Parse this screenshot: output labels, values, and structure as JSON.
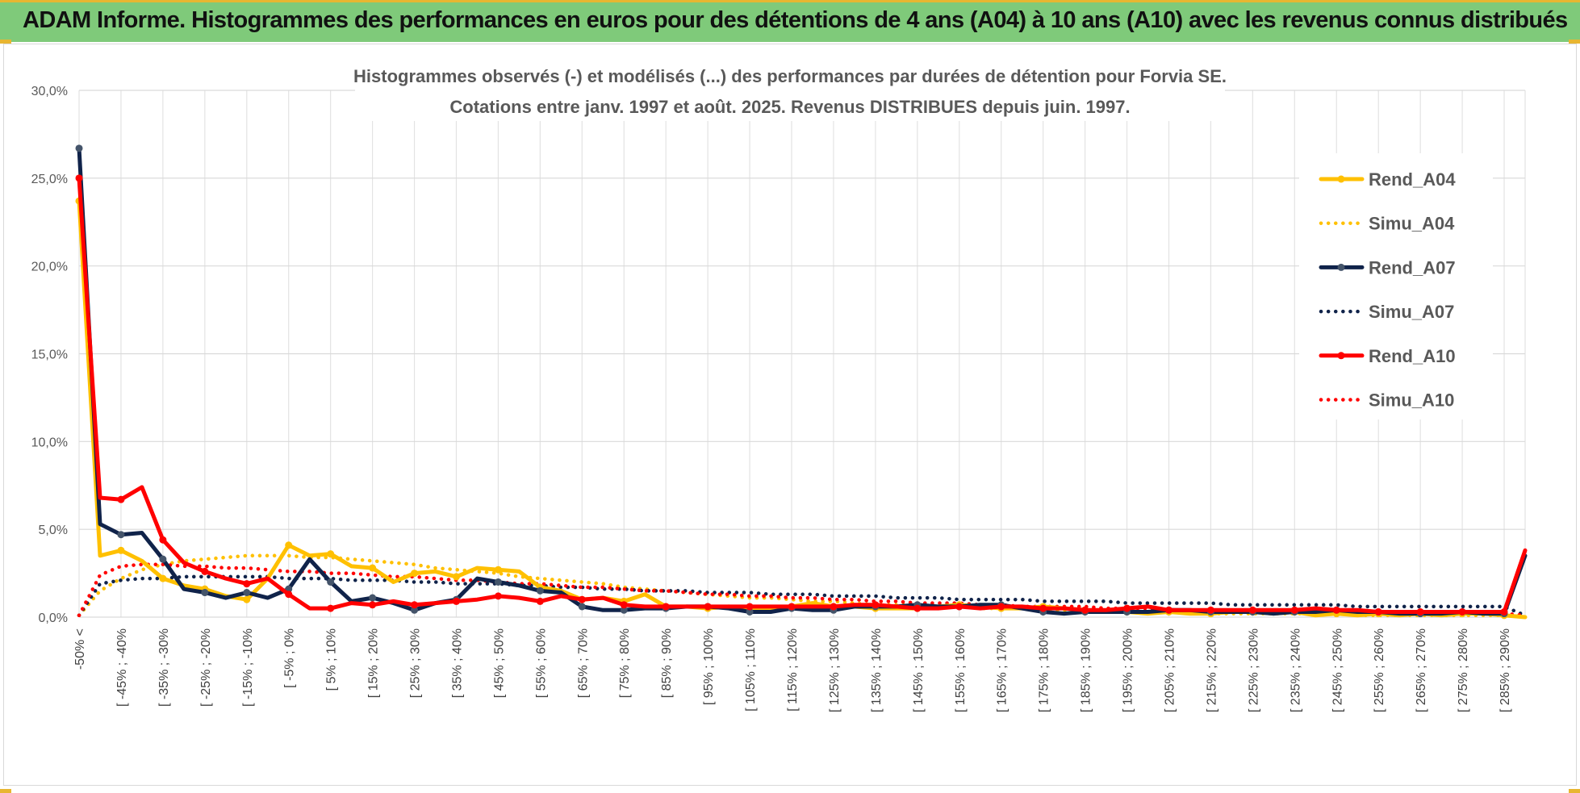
{
  "banner": {
    "title": "ADAM Informe. Histogrammes des performances en euros pour des détentions de 4 ans (A04) à 10 ans (A10) avec les revenus connus distribués"
  },
  "chart_data": {
    "type": "line",
    "title_lines": [
      "Histogrammes observés (-) et modélisés (...) des performances par durées de détention pour Forvia SE.",
      "Cotations entre janv. 1997 et août. 2025. Revenus DISTRIBUES depuis juin. 1997."
    ],
    "y_ticks": [
      "0,0%",
      "5,0%",
      "10,0%",
      "15,0%",
      "20,0%",
      "25,0%",
      "30,0%"
    ],
    "ylim": [
      0,
      30
    ],
    "x_labels": [
      "-50% <",
      "[ -45% ; -40%",
      "[ -35% ; -30%",
      "[ -25% ; -20%",
      "[ -15% ; -10%",
      "[ -5% ; 0%",
      "[ 5% ; 10%",
      "[ 15% ; 20%",
      "[ 25% ; 30%",
      "[ 35% ; 40%",
      "[ 45% ; 50%",
      "[ 55% ; 60%",
      "[ 65% ; 70%",
      "[ 75% ; 80%",
      "[ 85% ; 90%",
      "[ 95% ; 100%",
      "[ 105% ; 110%",
      "[ 115% ; 120%",
      "[ 125% ; 130%",
      "[ 135% ; 140%",
      "[ 145% ; 150%",
      "[ 155% ; 160%",
      "[ 165% ; 170%",
      "[ 175% ; 180%",
      "[ 185% ; 190%",
      "[ 195% ; 200%",
      "[ 205% ; 210%",
      "[ 215% ; 220%",
      "[ 225% ; 230%",
      "[ 235% ; 240%",
      "[ 245% ; 250%",
      "[ 255% ; 260%",
      "[ 265% ; 270%",
      "[ 275% ; 280%",
      "[ 285% ; 290%"
    ],
    "legend_position": "right",
    "grid": true,
    "series": [
      {
        "name": "Rend_A04",
        "color": "#ffc000",
        "style": "solid",
        "values": [
          23.7,
          3.5,
          3.8,
          3.2,
          2.2,
          1.8,
          1.6,
          1.2,
          1.0,
          2.2,
          4.1,
          3.5,
          3.6,
          2.9,
          2.8,
          2.0,
          2.5,
          2.6,
          2.3,
          2.8,
          2.7,
          2.6,
          1.7,
          1.5,
          1.0,
          1.1,
          0.9,
          1.3,
          0.6,
          0.6,
          0.5,
          0.6,
          0.5,
          0.5,
          0.6,
          0.8,
          0.6,
          0.6,
          0.5,
          0.5,
          0.5,
          0.6,
          0.7,
          0.6,
          0.5,
          0.5,
          0.6,
          0.5,
          0.4,
          0.3,
          0.3,
          0.2,
          0.3,
          0.2,
          0.2,
          0.3,
          0.3,
          0.2,
          0.3,
          0.1,
          0.2,
          0.1,
          0.2,
          0.1,
          0.2,
          0.1,
          0.2,
          0.2,
          0.1,
          0.0
        ]
      },
      {
        "name": "Simu_A04",
        "color": "#ffc000",
        "style": "dotted",
        "values": [
          0.1,
          1.5,
          2.2,
          2.7,
          3.0,
          3.2,
          3.3,
          3.4,
          3.5,
          3.5,
          3.5,
          3.4,
          3.4,
          3.3,
          3.2,
          3.1,
          3.0,
          2.8,
          2.7,
          2.6,
          2.5,
          2.3,
          2.2,
          2.1,
          2.0,
          1.9,
          1.7,
          1.6,
          1.5,
          1.4,
          1.3,
          1.2,
          1.1,
          1.1,
          1.0,
          0.9,
          0.9,
          0.8,
          0.7,
          0.7,
          0.7,
          0.6,
          0.6,
          0.5,
          0.5,
          0.5,
          0.4,
          0.4,
          0.4,
          0.3,
          0.3,
          0.3,
          0.3,
          0.3,
          0.2,
          0.2,
          0.2,
          0.2,
          0.2,
          0.2,
          0.2,
          0.1,
          0.1,
          0.1,
          0.1,
          0.1,
          0.1,
          0.1,
          0.1,
          0.1
        ]
      },
      {
        "name": "Rend_A07",
        "color": "#10234a",
        "style": "solid",
        "values": [
          26.7,
          5.3,
          4.7,
          4.8,
          3.3,
          1.6,
          1.4,
          1.1,
          1.4,
          1.1,
          1.6,
          3.3,
          2.0,
          0.9,
          1.1,
          0.8,
          0.4,
          0.8,
          1.0,
          2.2,
          2.0,
          1.8,
          1.5,
          1.4,
          0.6,
          0.4,
          0.4,
          0.5,
          0.5,
          0.6,
          0.6,
          0.5,
          0.3,
          0.3,
          0.5,
          0.4,
          0.4,
          0.6,
          0.6,
          0.6,
          0.7,
          0.6,
          0.6,
          0.7,
          0.7,
          0.5,
          0.3,
          0.2,
          0.3,
          0.3,
          0.3,
          0.3,
          0.4,
          0.4,
          0.3,
          0.3,
          0.3,
          0.2,
          0.3,
          0.3,
          0.4,
          0.3,
          0.3,
          0.2,
          0.2,
          0.2,
          0.3,
          0.2,
          0.2,
          3.5
        ]
      },
      {
        "name": "Simu_A07",
        "color": "#10234a",
        "style": "dotted",
        "values": [
          0.1,
          1.9,
          2.1,
          2.2,
          2.2,
          2.3,
          2.3,
          2.3,
          2.3,
          2.3,
          2.2,
          2.2,
          2.2,
          2.1,
          2.1,
          2.1,
          2.0,
          2.0,
          1.9,
          1.9,
          1.9,
          1.8,
          1.8,
          1.7,
          1.7,
          1.6,
          1.6,
          1.5,
          1.5,
          1.5,
          1.4,
          1.4,
          1.4,
          1.3,
          1.3,
          1.3,
          1.2,
          1.2,
          1.2,
          1.1,
          1.1,
          1.1,
          1.0,
          1.0,
          1.0,
          1.0,
          0.9,
          0.9,
          0.9,
          0.9,
          0.8,
          0.8,
          0.8,
          0.8,
          0.8,
          0.7,
          0.7,
          0.7,
          0.7,
          0.7,
          0.7,
          0.6,
          0.6,
          0.6,
          0.6,
          0.6,
          0.6,
          0.6,
          0.6,
          0.1
        ]
      },
      {
        "name": "Rend_A10",
        "color": "#ff0000",
        "style": "solid",
        "values": [
          25.0,
          6.8,
          6.7,
          7.4,
          4.4,
          3.1,
          2.6,
          2.2,
          1.9,
          2.2,
          1.3,
          0.5,
          0.5,
          0.8,
          0.7,
          0.9,
          0.7,
          0.8,
          0.9,
          1.0,
          1.2,
          1.1,
          0.9,
          1.2,
          1.0,
          1.1,
          0.7,
          0.6,
          0.6,
          0.6,
          0.6,
          0.6,
          0.6,
          0.6,
          0.6,
          0.6,
          0.6,
          0.7,
          0.7,
          0.6,
          0.5,
          0.5,
          0.6,
          0.5,
          0.6,
          0.6,
          0.5,
          0.5,
          0.4,
          0.4,
          0.5,
          0.6,
          0.4,
          0.4,
          0.4,
          0.4,
          0.4,
          0.4,
          0.4,
          0.5,
          0.4,
          0.4,
          0.3,
          0.3,
          0.3,
          0.3,
          0.3,
          0.3,
          0.3,
          3.8
        ]
      },
      {
        "name": "Simu_A10",
        "color": "#ff0000",
        "style": "dotted",
        "values": [
          0.1,
          2.4,
          2.9,
          3.0,
          3.0,
          2.9,
          2.9,
          2.8,
          2.8,
          2.7,
          2.6,
          2.6,
          2.5,
          2.5,
          2.4,
          2.3,
          2.3,
          2.2,
          2.1,
          2.1,
          2.0,
          1.9,
          1.9,
          1.8,
          1.7,
          1.7,
          1.6,
          1.5,
          1.5,
          1.4,
          1.3,
          1.3,
          1.2,
          1.2,
          1.1,
          1.1,
          1.0,
          1.0,
          0.9,
          0.9,
          0.8,
          0.8,
          0.8,
          0.7,
          0.7,
          0.6,
          0.6,
          0.6,
          0.6,
          0.5,
          0.5,
          0.5,
          0.4,
          0.4,
          0.4,
          0.4,
          0.4,
          0.3,
          0.3,
          0.3,
          0.3,
          0.3,
          0.3,
          0.2,
          0.2,
          0.2,
          0.2,
          0.2,
          0.2,
          0.1
        ]
      }
    ]
  }
}
